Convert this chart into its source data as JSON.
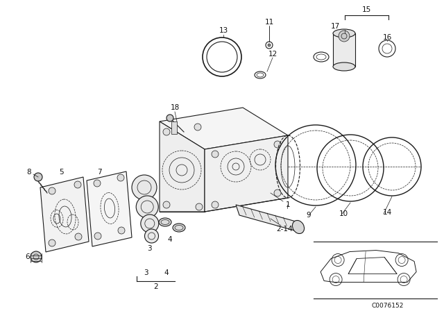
{
  "background_color": "#ffffff",
  "line_color": "#1a1a1a",
  "car_code": "C0076152",
  "lw_main": 0.8,
  "lw_thin": 0.5,
  "lw_dashed": 0.6,
  "label_fontsize": 7.5
}
